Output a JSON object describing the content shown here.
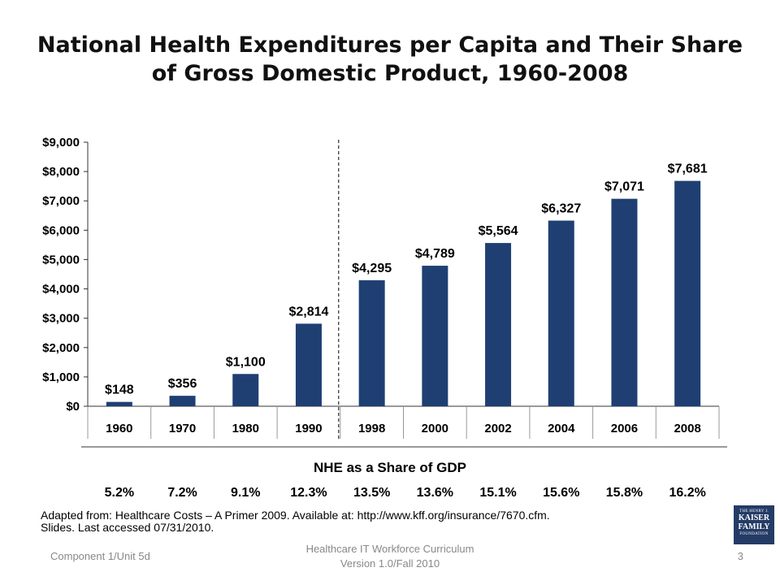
{
  "slide": {
    "title": "National Health Expenditures per Capita and Their Share of Gross Domestic Product, 1960-2008",
    "gdp_header": "NHE as a Share of GDP",
    "gdp_share": [
      "5.2%",
      "7.2%",
      "9.1%",
      "12.3%",
      "13.5%",
      "13.6%",
      "15.1%",
      "15.6%",
      "15.8%",
      "16.2%"
    ],
    "source_line1": "Adapted from: Healthcare Costs – A Primer 2009. Available at: http://www.kff.org/insurance/7670.cfm.",
    "source_line2": "Slides. Last accessed 07/31/2010.",
    "logo": {
      "line1": "THE HENRY J.",
      "line2": "KAISER",
      "line3": "FAMILY",
      "line4": "FOUNDATION"
    },
    "footer_left": "Component 1/Unit 5d",
    "footer_center_line1": "Healthcare IT Workforce Curriculum",
    "footer_center_line2": "Version 1.0/Fall 2010",
    "page_number": "3"
  },
  "chart_data": {
    "type": "bar",
    "title": "National Health Expenditures per Capita and Their Share of Gross Domestic Product, 1960-2008",
    "categories": [
      "1960",
      "1970",
      "1980",
      "1990",
      "1998",
      "2000",
      "2002",
      "2004",
      "2006",
      "2008"
    ],
    "values": [
      148,
      356,
      1100,
      2814,
      4295,
      4789,
      5564,
      6327,
      7071,
      7681
    ],
    "data_labels": [
      "$148",
      "$356",
      "$1,100",
      "$2,814",
      "$4,295",
      "$4,789",
      "$5,564",
      "$6,327",
      "$7,071",
      "$7,681"
    ],
    "y_ticks": [
      "$0",
      "$1,000",
      "$2,000",
      "$3,000",
      "$4,000",
      "$5,000",
      "$6,000",
      "$7,000",
      "$8,000",
      "$9,000"
    ],
    "ylim": [
      0,
      9000
    ],
    "bar_color": "#1f3f73",
    "dashed_divider_between": [
      "1990",
      "1998"
    ],
    "grid": false,
    "legend": "none"
  }
}
